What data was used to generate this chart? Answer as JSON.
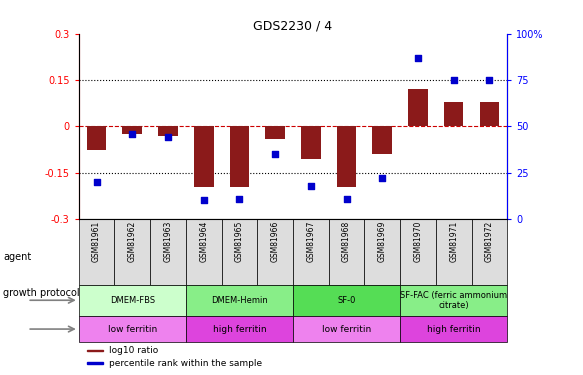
{
  "title": "GDS2230 / 4",
  "samples": [
    "GSM81961",
    "GSM81962",
    "GSM81963",
    "GSM81964",
    "GSM81965",
    "GSM81966",
    "GSM81967",
    "GSM81968",
    "GSM81969",
    "GSM81970",
    "GSM81971",
    "GSM81972"
  ],
  "log10_ratio": [
    -0.075,
    -0.025,
    -0.03,
    -0.195,
    -0.195,
    -0.04,
    -0.105,
    -0.195,
    -0.09,
    0.12,
    0.08,
    0.08
  ],
  "percentile": [
    20,
    46,
    44,
    10,
    11,
    35,
    18,
    11,
    22,
    87,
    75,
    75
  ],
  "ylim": [
    -0.3,
    0.3
  ],
  "yticks_left": [
    -0.3,
    -0.15,
    0,
    0.15,
    0.3
  ],
  "yticks_right": [
    0,
    25,
    50,
    75,
    100
  ],
  "bar_color": "#8B1A1A",
  "dot_color": "#0000CC",
  "hline_color": "#CC0000",
  "dotline_y": [
    0.15,
    -0.15
  ],
  "agent_groups": [
    {
      "label": "DMEM-FBS",
      "start": 0,
      "end": 3,
      "color": "#CCFFCC"
    },
    {
      "label": "DMEM-Hemin",
      "start": 3,
      "end": 6,
      "color": "#88EE88"
    },
    {
      "label": "SF-0",
      "start": 6,
      "end": 9,
      "color": "#55DD55"
    },
    {
      "label": "SF-FAC (ferric ammonium\ncitrate)",
      "start": 9,
      "end": 12,
      "color": "#88EE88"
    }
  ],
  "protocol_groups": [
    {
      "label": "low ferritin",
      "start": 0,
      "end": 3,
      "color": "#EE82EE"
    },
    {
      "label": "high ferritin",
      "start": 3,
      "end": 6,
      "color": "#DD44DD"
    },
    {
      "label": "low ferritin",
      "start": 6,
      "end": 9,
      "color": "#EE82EE"
    },
    {
      "label": "high ferritin",
      "start": 9,
      "end": 12,
      "color": "#DD44DD"
    }
  ],
  "legend_bar_label": "log10 ratio",
  "legend_dot_label": "percentile rank within the sample",
  "agent_label": "agent",
  "protocol_label": "growth protocol",
  "sample_box_color": "#DDDDDD",
  "bar_width": 0.55
}
